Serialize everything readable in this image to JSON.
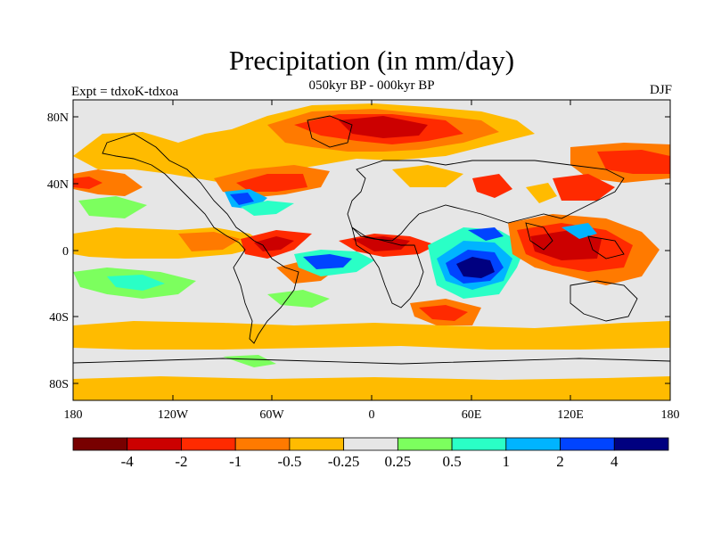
{
  "title": "Precipitation (in mm/day)",
  "subtitle": "050kyr BP - 000kyr BP",
  "left_label": "Expt = tdxoK-tdxoa",
  "right_label": "DJF",
  "lat_labels": [
    "80N",
    "40N",
    "0",
    "40S",
    "80S"
  ],
  "lon_labels": [
    "180",
    "120W",
    "60W",
    "0",
    "60E",
    "120E",
    "180"
  ],
  "colorbar": {
    "colors": [
      "#780000",
      "#cc0000",
      "#ff2a00",
      "#ff7a00",
      "#ffbb00",
      "#e6e6e6",
      "#7cff5e",
      "#2affc6",
      "#00b4ff",
      "#0044ff",
      "#000080"
    ],
    "labels": [
      "-4",
      "-2",
      "-1",
      "-0.5",
      "-0.25",
      "0.25",
      "0.5",
      "1",
      "2",
      "4"
    ]
  }
}
